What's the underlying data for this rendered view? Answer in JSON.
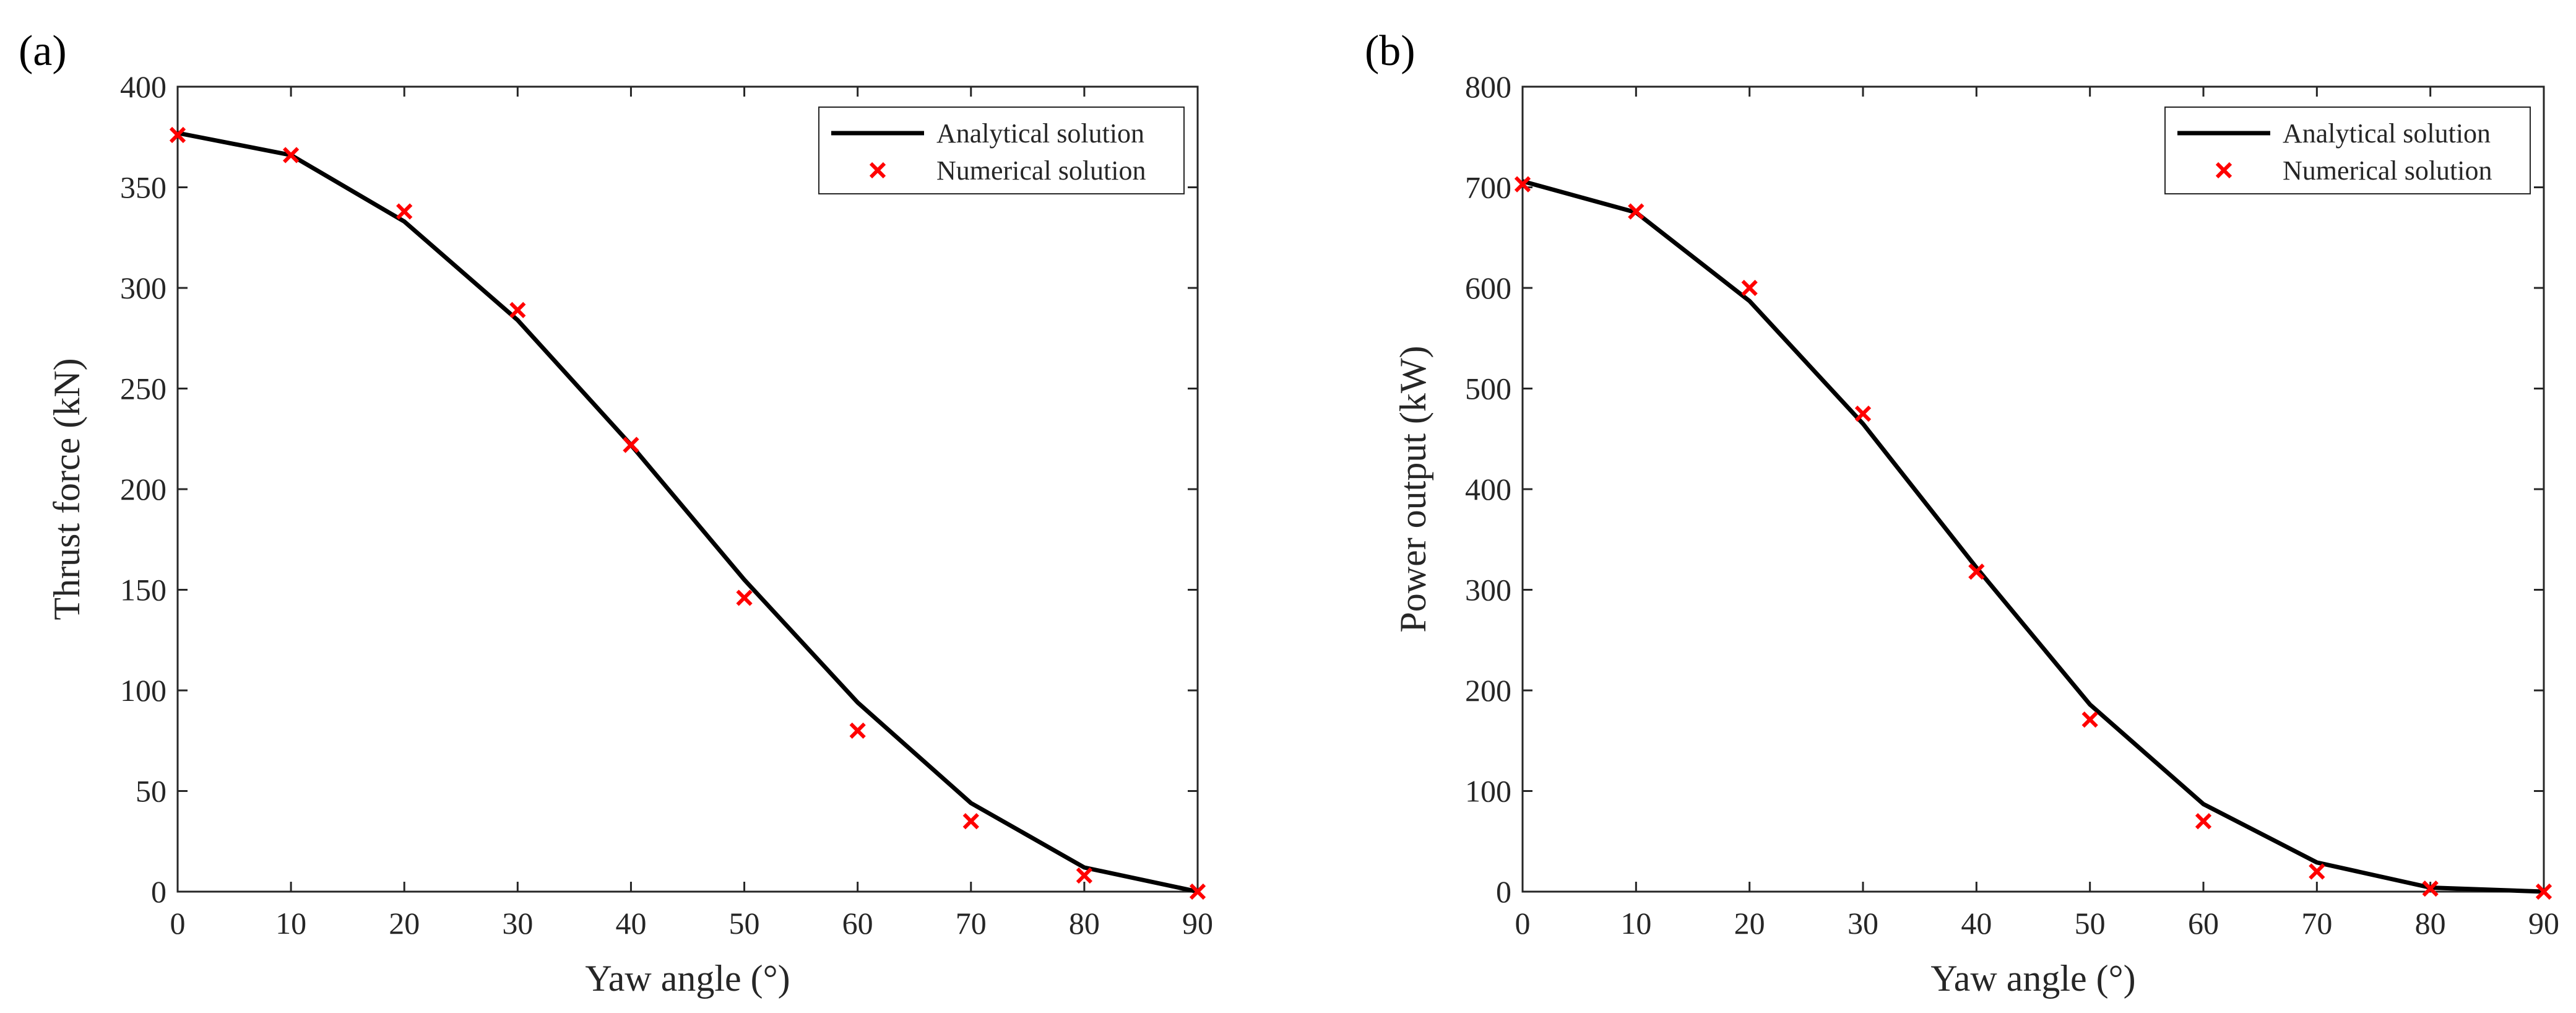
{
  "chart_data": [
    {
      "type": "line",
      "panel_label": "(a)",
      "xlabel": "Yaw angle (°)",
      "ylabel": "Thrust force (kN)",
      "xlim": [
        0,
        90
      ],
      "ylim": [
        0,
        400
      ],
      "xticks": [
        0,
        10,
        20,
        30,
        40,
        50,
        60,
        70,
        80,
        90
      ],
      "yticks": [
        0,
        50,
        100,
        150,
        200,
        250,
        300,
        350,
        400
      ],
      "grid": false,
      "legend_position": "top-right",
      "series": [
        {
          "name": "Analytical solution",
          "style": "line",
          "color": "#000000",
          "x": [
            0,
            10,
            20,
            30,
            40,
            50,
            60,
            70,
            80,
            90
          ],
          "values": [
            377,
            366,
            333,
            284,
            222,
            155,
            94,
            44,
            12,
            0
          ]
        },
        {
          "name": "Numerical solution",
          "style": "marker-x",
          "color": "#ff0000",
          "x": [
            0,
            10,
            20,
            30,
            40,
            50,
            60,
            70,
            80,
            90
          ],
          "values": [
            376,
            366,
            338,
            289,
            222,
            146,
            80,
            35,
            8,
            0
          ]
        }
      ]
    },
    {
      "type": "line",
      "panel_label": "(b)",
      "xlabel": "Yaw angle (°)",
      "ylabel": "Power output (kW)",
      "xlim": [
        0,
        90
      ],
      "ylim": [
        0,
        800
      ],
      "xticks": [
        0,
        10,
        20,
        30,
        40,
        50,
        60,
        70,
        80,
        90
      ],
      "yticks": [
        0,
        100,
        200,
        300,
        400,
        500,
        600,
        700,
        800
      ],
      "grid": false,
      "legend_position": "top-right",
      "series": [
        {
          "name": "Analytical solution",
          "style": "line",
          "color": "#000000",
          "x": [
            0,
            10,
            20,
            30,
            40,
            50,
            60,
            70,
            80,
            90
          ],
          "values": [
            706,
            675,
            587,
            465,
            322,
            186,
            87,
            29,
            4,
            0
          ]
        },
        {
          "name": "Numerical solution",
          "style": "marker-x",
          "color": "#ff0000",
          "x": [
            0,
            10,
            20,
            30,
            40,
            50,
            60,
            70,
            80,
            90
          ],
          "values": [
            703,
            676,
            600,
            475,
            318,
            171,
            70,
            20,
            3,
            0
          ]
        }
      ]
    }
  ]
}
